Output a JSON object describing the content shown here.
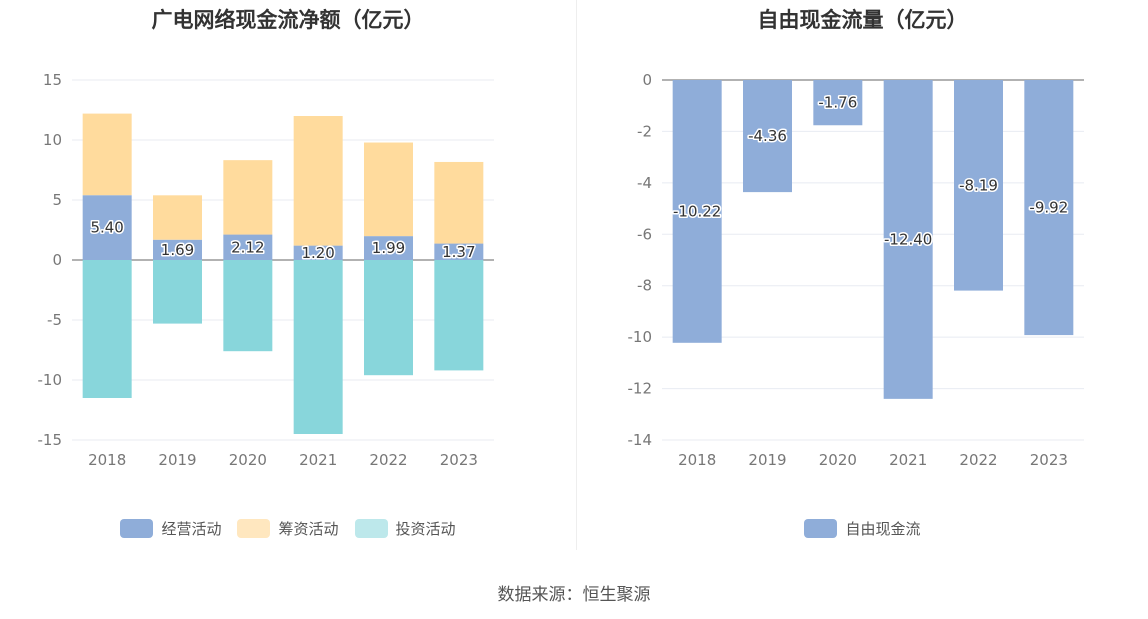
{
  "source": "数据来源：恒生聚源",
  "chart_data": [
    {
      "type": "bar",
      "stacked": true,
      "title": "广电网络现金流净额（亿元）",
      "categories": [
        "2018",
        "2019",
        "2020",
        "2021",
        "2022",
        "2023"
      ],
      "ylim": [
        -15,
        15
      ],
      "yticks": [
        15,
        10,
        5,
        0,
        -5,
        -10,
        -15
      ],
      "ytick_labels": [
        "15",
        "10",
        "5",
        "0",
        "-5",
        "-10",
        "-15"
      ],
      "series": [
        {
          "name": "经营活动",
          "color": "#8fadd9",
          "values": [
            5.4,
            1.69,
            2.12,
            1.2,
            1.99,
            1.37
          ],
          "labels": [
            "5.40",
            "1.69",
            "2.12",
            "1.20",
            "1.99",
            "1.37"
          ]
        },
        {
          "name": "筹资活动",
          "color": "#ffdb9d",
          "values": [
            6.8,
            3.7,
            6.2,
            10.8,
            7.8,
            6.8
          ]
        },
        {
          "name": "投资活动",
          "color": "#88d6db",
          "values": [
            -11.5,
            -5.3,
            -7.6,
            -14.5,
            -9.6,
            -9.2
          ]
        }
      ],
      "legend": {
        "placement": "bottom-center",
        "colors": [
          "#8fadd9",
          "#ffe7bf",
          "#bde8eb"
        ]
      }
    },
    {
      "type": "bar",
      "title": "自由现金流量（亿元）",
      "categories": [
        "2018",
        "2019",
        "2020",
        "2021",
        "2022",
        "2023"
      ],
      "ylim": [
        -14,
        0
      ],
      "yticks": [
        0,
        -2,
        -4,
        -6,
        -8,
        -10,
        -12,
        -14
      ],
      "ytick_labels": [
        "0",
        "-2",
        "-4",
        "-6",
        "-8",
        "-10",
        "-12",
        "-14"
      ],
      "series": [
        {
          "name": "自由现金流",
          "color": "#8fadd9",
          "values": [
            -10.22,
            -4.36,
            -1.76,
            -12.4,
            -8.19,
            -9.92
          ],
          "labels": [
            "-10.22",
            "-4.36",
            "-1.76",
            "-12.40",
            "-8.19",
            "-9.92"
          ]
        }
      ],
      "legend": {
        "placement": "bottom-center",
        "colors": [
          "#8fadd9"
        ]
      }
    }
  ]
}
